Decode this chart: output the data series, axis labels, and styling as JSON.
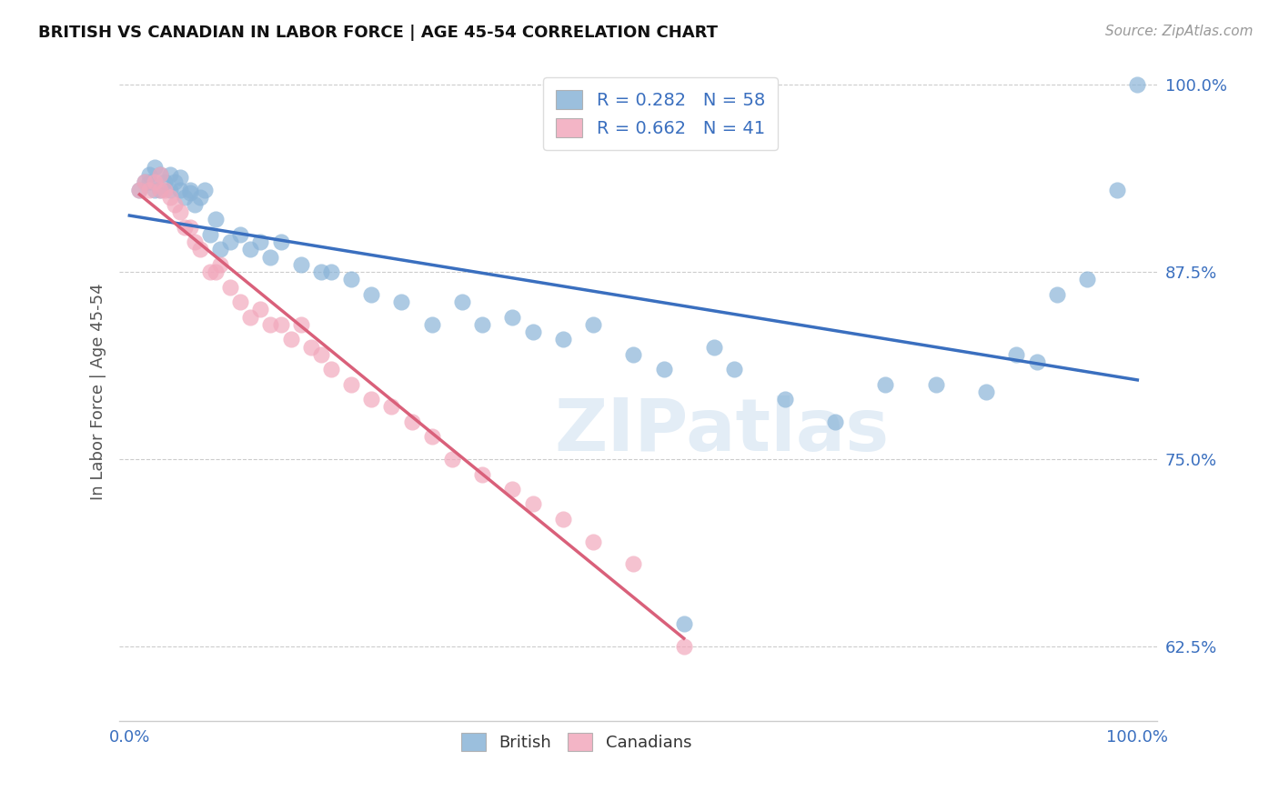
{
  "title": "BRITISH VS CANADIAN IN LABOR FORCE | AGE 45-54 CORRELATION CHART",
  "source": "Source: ZipAtlas.com",
  "ylabel": "In Labor Force | Age 45-54",
  "british_color": "#8ab4d8",
  "canadian_color": "#f2a8bc",
  "british_line_color": "#3a6fbf",
  "canadian_line_color": "#d9607a",
  "R_british": 0.282,
  "N_british": 58,
  "R_canadian": 0.662,
  "N_canadian": 41,
  "british_x": [
    0.01,
    0.015,
    0.02,
    0.02,
    0.025,
    0.025,
    0.03,
    0.03,
    0.035,
    0.04,
    0.04,
    0.045,
    0.05,
    0.05,
    0.055,
    0.06,
    0.06,
    0.065,
    0.07,
    0.075,
    0.08,
    0.085,
    0.09,
    0.1,
    0.11,
    0.12,
    0.13,
    0.14,
    0.15,
    0.17,
    0.19,
    0.2,
    0.22,
    0.24,
    0.27,
    0.3,
    0.33,
    0.35,
    0.38,
    0.4,
    0.43,
    0.46,
    0.5,
    0.53,
    0.55,
    0.58,
    0.6,
    0.65,
    0.7,
    0.75,
    0.8,
    0.85,
    0.88,
    0.9,
    0.92,
    0.95,
    0.98,
    1.0
  ],
  "british_y": [
    0.93,
    0.935,
    0.935,
    0.94,
    0.93,
    0.945,
    0.93,
    0.94,
    0.935,
    0.93,
    0.94,
    0.935,
    0.93,
    0.938,
    0.925,
    0.928,
    0.93,
    0.92,
    0.925,
    0.93,
    0.9,
    0.91,
    0.89,
    0.895,
    0.9,
    0.89,
    0.895,
    0.885,
    0.895,
    0.88,
    0.875,
    0.875,
    0.87,
    0.86,
    0.855,
    0.84,
    0.855,
    0.84,
    0.845,
    0.835,
    0.83,
    0.84,
    0.82,
    0.81,
    0.64,
    0.825,
    0.81,
    0.79,
    0.775,
    0.8,
    0.8,
    0.795,
    0.82,
    0.815,
    0.86,
    0.87,
    0.93,
    1.0
  ],
  "canadian_x": [
    0.01,
    0.015,
    0.02,
    0.025,
    0.03,
    0.03,
    0.035,
    0.04,
    0.045,
    0.05,
    0.055,
    0.06,
    0.065,
    0.07,
    0.08,
    0.085,
    0.09,
    0.1,
    0.11,
    0.12,
    0.13,
    0.14,
    0.15,
    0.16,
    0.17,
    0.18,
    0.19,
    0.2,
    0.22,
    0.24,
    0.26,
    0.28,
    0.3,
    0.32,
    0.35,
    0.38,
    0.4,
    0.43,
    0.46,
    0.5,
    0.55
  ],
  "canadian_y": [
    0.93,
    0.935,
    0.93,
    0.935,
    0.93,
    0.94,
    0.93,
    0.925,
    0.92,
    0.915,
    0.905,
    0.905,
    0.895,
    0.89,
    0.875,
    0.875,
    0.88,
    0.865,
    0.855,
    0.845,
    0.85,
    0.84,
    0.84,
    0.83,
    0.84,
    0.825,
    0.82,
    0.81,
    0.8,
    0.79,
    0.785,
    0.775,
    0.765,
    0.75,
    0.74,
    0.73,
    0.72,
    0.71,
    0.695,
    0.68,
    0.625
  ],
  "ytick_vals": [
    0.625,
    0.75,
    0.875,
    1.0
  ],
  "ytick_labels": [
    "62.5%",
    "75.0%",
    "87.5%",
    "100.0%"
  ],
  "xtick_vals": [
    0.0,
    0.2,
    0.4,
    0.6,
    0.8,
    1.0
  ],
  "xtick_labels": [
    "0.0%",
    "",
    "",
    "",
    "",
    "100.0%"
  ],
  "xlim": [
    -0.01,
    1.02
  ],
  "ylim": [
    0.575,
    1.015
  ],
  "watermark_text": "ZIPatlas",
  "watermark_color": "#ccdff0"
}
